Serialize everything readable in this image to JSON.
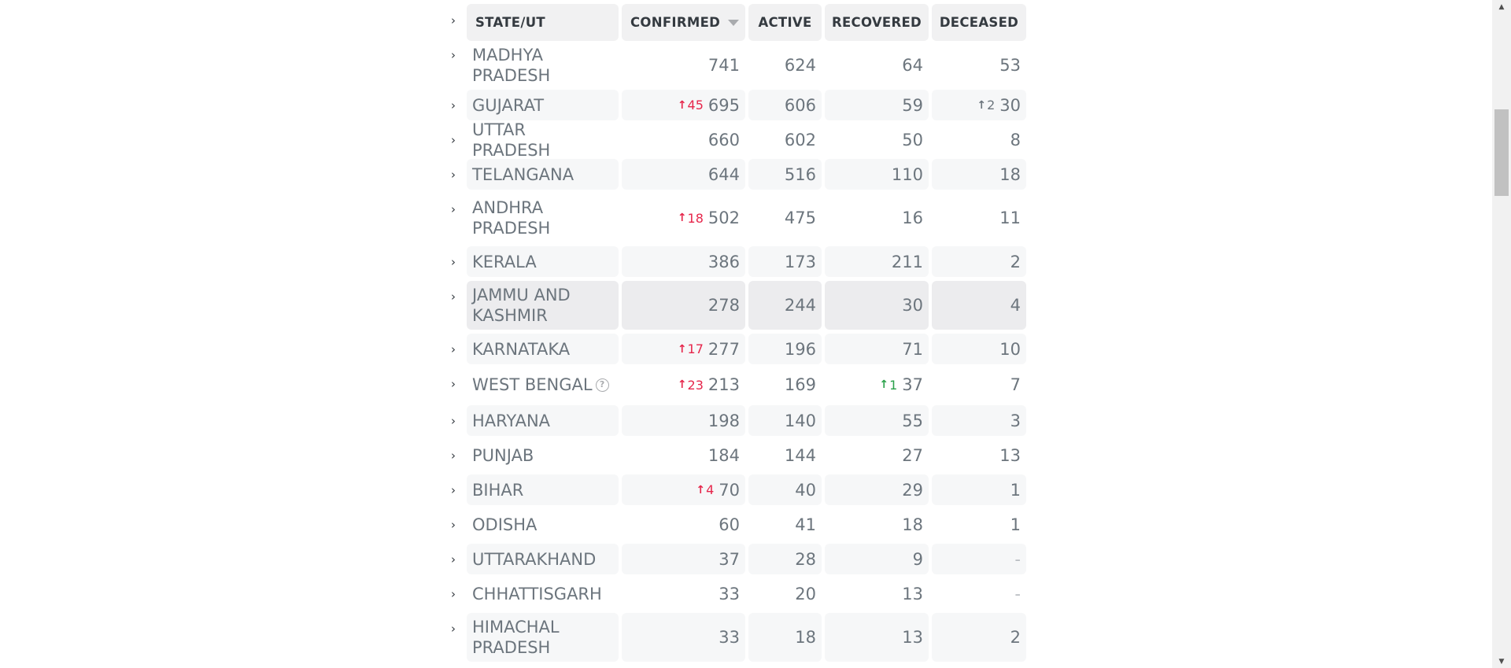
{
  "table": {
    "headers": {
      "state": "STATE/UT",
      "confirmed": "CONFIRMED",
      "active": "ACTIVE",
      "recovered": "RECOVERED",
      "deceased": "DECEASED"
    },
    "rows": [
      {
        "state": "MADHYA PRADESH",
        "confirmed": "741",
        "active": "624",
        "recovered": "64",
        "deceased": "53"
      },
      {
        "state": "GUJARAT",
        "confirmed_delta": "45",
        "confirmed": "695",
        "active": "606",
        "recovered": "59",
        "deceased_delta": "2",
        "deceased": "30"
      },
      {
        "state": "UTTAR PRADESH",
        "confirmed": "660",
        "active": "602",
        "recovered": "50",
        "deceased": "8"
      },
      {
        "state": "TELANGANA",
        "confirmed": "644",
        "active": "516",
        "recovered": "110",
        "deceased": "18"
      },
      {
        "state": "ANDHRA PRADESH",
        "confirmed_delta": "18",
        "confirmed": "502",
        "active": "475",
        "recovered": "16",
        "deceased": "11"
      },
      {
        "state": "KERALA",
        "confirmed": "386",
        "active": "173",
        "recovered": "211",
        "deceased": "2"
      },
      {
        "state": "JAMMU AND KASHMIR",
        "confirmed": "278",
        "active": "244",
        "recovered": "30",
        "deceased": "4"
      },
      {
        "state": "KARNATAKA",
        "confirmed_delta": "17",
        "confirmed": "277",
        "active": "196",
        "recovered": "71",
        "deceased": "10"
      },
      {
        "state": "WEST BENGAL",
        "confirmed_delta": "23",
        "confirmed": "213",
        "active": "169",
        "recovered_delta": "1",
        "recovered": "37",
        "deceased": "7"
      },
      {
        "state": "HARYANA",
        "confirmed": "198",
        "active": "140",
        "recovered": "55",
        "deceased": "3"
      },
      {
        "state": "PUNJAB",
        "confirmed": "184",
        "active": "144",
        "recovered": "27",
        "deceased": "13"
      },
      {
        "state": "BIHAR",
        "confirmed_delta": "4",
        "confirmed": "70",
        "active": "40",
        "recovered": "29",
        "deceased": "1"
      },
      {
        "state": "ODISHA",
        "confirmed": "60",
        "active": "41",
        "recovered": "18",
        "deceased": "1"
      },
      {
        "state": "UTTARAKHAND",
        "confirmed": "37",
        "active": "28",
        "recovered": "9",
        "deceased": "-"
      },
      {
        "state": "CHHATTISGARH",
        "confirmed": "33",
        "active": "20",
        "recovered": "13",
        "deceased": "-"
      },
      {
        "state": "HIMACHAL PRADESH",
        "confirmed": "33",
        "active": "18",
        "recovered": "13",
        "deceased": "2"
      }
    ]
  },
  "icons": {
    "expand": "chevron-right-icon",
    "sort": "sort-down-icon",
    "info": "question-circle-icon",
    "delta_arrow": "arrow-up-icon"
  },
  "colors": {
    "delta_confirmed": "#e6264b",
    "delta_recovered": "#2aa14a",
    "delta_deceased": "#6c757d"
  }
}
